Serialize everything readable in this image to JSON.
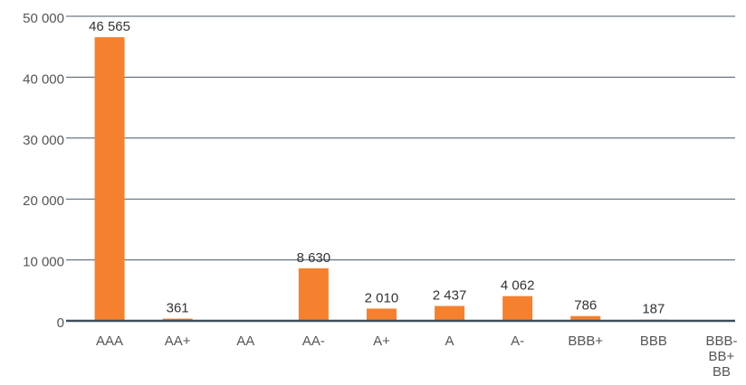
{
  "chart_data": {
    "type": "bar",
    "categories": [
      "AAA",
      "AA+",
      "AA",
      "AA-",
      "A+",
      "A",
      "A-",
      "BBB+",
      "BBB",
      "BBB-\nBB+\nBB"
    ],
    "values": [
      46565,
      361,
      0,
      8630,
      2010,
      2437,
      4062,
      786,
      187,
      0
    ],
    "value_labels": [
      "46 565",
      "361",
      null,
      "8 630",
      "2 010",
      "2 437",
      "4 062",
      "786",
      "187",
      null
    ],
    "color": "#f5812f",
    "ylim": [
      0,
      50000
    ],
    "yticks": [
      0,
      {
        "value": 10000,
        "label": "10 000"
      },
      {
        "value": 20000,
        "label": "20 000"
      },
      {
        "value": 30000,
        "label": "30 000"
      },
      {
        "value": 40000,
        "label": "40 000"
      },
      {
        "value": 50000,
        "label": "50 000"
      }
    ],
    "grid": true
  }
}
